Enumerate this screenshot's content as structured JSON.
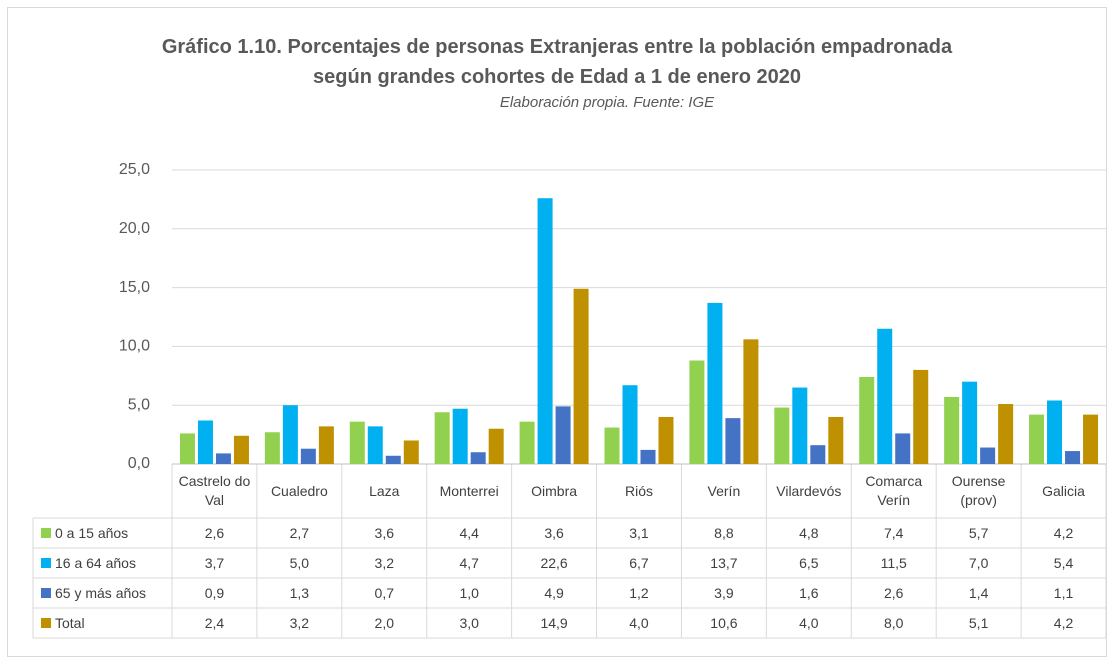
{
  "chart_data": {
    "type": "bar",
    "title": "Gráfico 1.10.  Porcentajes de personas Extranjeras entre la población empadronada según grandes cohortes de Edad a 1 de enero 2020",
    "subtitle": "Elaboración propia. Fuente: IGE",
    "categories": [
      "Castrelo do Val",
      "Cualedro",
      "Laza",
      "Monterrei",
      "Oimbra",
      "Riós",
      "Verín",
      "Vilardevós",
      "Comarca Verín",
      "Ourense (prov)",
      "Galicia"
    ],
    "series": [
      {
        "name": "0 a 15 años",
        "color": "#92d050",
        "values": [
          2.6,
          2.7,
          3.6,
          4.4,
          3.6,
          3.1,
          8.8,
          4.8,
          7.4,
          5.7,
          4.2
        ],
        "value_labels": [
          "2,6",
          "2,7",
          "3,6",
          "4,4",
          "3,6",
          "3,1",
          "8,8",
          "4,8",
          "7,4",
          "5,7",
          "4,2"
        ]
      },
      {
        "name": "16 a 64 años",
        "color": "#00b0f0",
        "values": [
          3.7,
          5.0,
          3.2,
          4.7,
          22.6,
          6.7,
          13.7,
          6.5,
          11.5,
          7.0,
          5.4
        ],
        "value_labels": [
          "3,7",
          "5,0",
          "3,2",
          "4,7",
          "22,6",
          "6,7",
          "13,7",
          "6,5",
          "11,5",
          "7,0",
          "5,4"
        ]
      },
      {
        "name": "65 y más años",
        "color": "#4472c4",
        "values": [
          0.9,
          1.3,
          0.7,
          1.0,
          4.9,
          1.2,
          3.9,
          1.6,
          2.6,
          1.4,
          1.1
        ],
        "value_labels": [
          "0,9",
          "1,3",
          "0,7",
          "1,0",
          "4,9",
          "1,2",
          "3,9",
          "1,6",
          "2,6",
          "1,4",
          "1,1"
        ]
      },
      {
        "name": "Total",
        "color": "#bf9000",
        "values": [
          2.4,
          3.2,
          2.0,
          3.0,
          14.9,
          4.0,
          10.6,
          4.0,
          8.0,
          5.1,
          4.2
        ],
        "value_labels": [
          "2,4",
          "3,2",
          "2,0",
          "3,0",
          "14,9",
          "4,0",
          "10,6",
          "4,0",
          "8,0",
          "5,1",
          "4,2"
        ]
      }
    ],
    "ylim": [
      0,
      25
    ],
    "yticks": [
      {
        "value": 0,
        "label": "0,0"
      },
      {
        "value": 5,
        "label": "5,0"
      },
      {
        "value": 10,
        "label": "10,0"
      },
      {
        "value": 15,
        "label": "15,0"
      },
      {
        "value": 20,
        "label": "20,0"
      },
      {
        "value": 25,
        "label": "25,0"
      }
    ],
    "grid": true
  }
}
